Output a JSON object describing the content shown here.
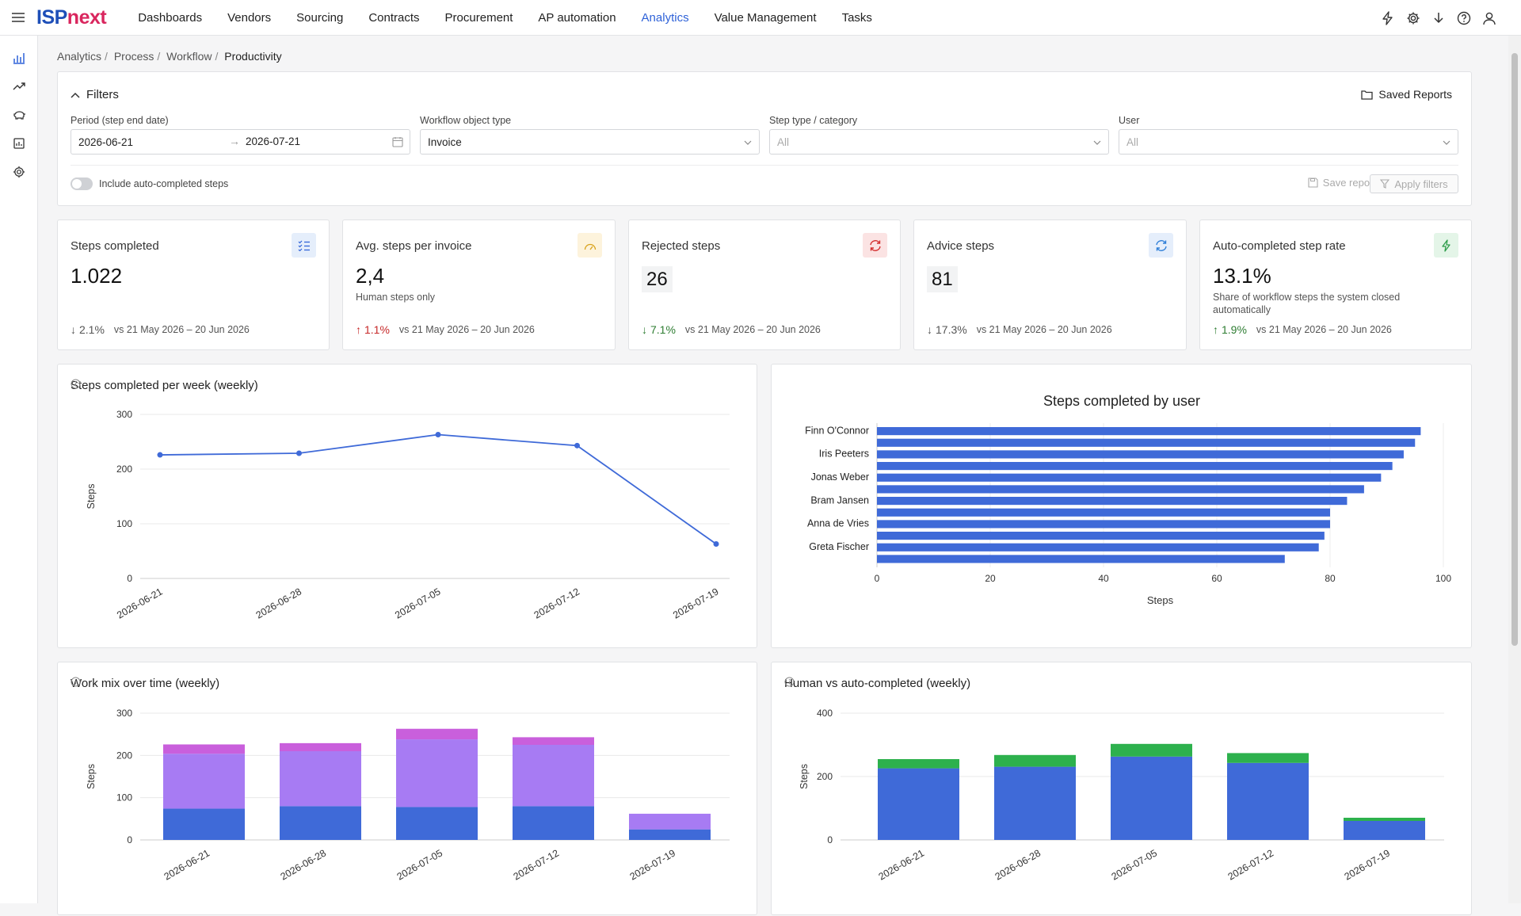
{
  "app": {
    "logo_part1": "ISP",
    "logo_part2": "next"
  },
  "nav": [
    "Dashboards",
    "Vendors",
    "Sourcing",
    "Contracts",
    "Procurement",
    "AP automation",
    "Analytics",
    "Value Management",
    "Tasks"
  ],
  "nav_active": "Analytics",
  "breadcrumb": {
    "items": [
      "Analytics",
      "Process",
      "Workflow"
    ],
    "current": "Productivity"
  },
  "filters": {
    "title": "Filters",
    "saved_reports": "Saved Reports",
    "period_label": "Period (step end date)",
    "period_start": "2026-06-21",
    "period_end": "2026-07-21",
    "object_type_label": "Workflow object type",
    "object_type_value": "Invoice",
    "step_type_label": "Step type / category",
    "step_type_placeholder": "All",
    "user_label": "User",
    "user_placeholder": "All",
    "toggle_label": "Include auto-completed steps",
    "save_report": "Save report",
    "apply_filters": "Apply filters"
  },
  "kpis": [
    {
      "title": "Steps completed",
      "value": "1.022",
      "sub": "",
      "delta": "2.1%",
      "direction": "down",
      "tone": "neutral",
      "compare": "vs 21 May 2026 – 20 Jun 2026",
      "icon": "checklist-icon",
      "icon_color": "#2f62d8",
      "icon_bg": "#e5eefb"
    },
    {
      "title": "Avg. steps per invoice",
      "value": "2,4",
      "sub": "Human steps only",
      "delta": "1.1%",
      "direction": "up",
      "tone": "bad",
      "compare": "vs 21 May 2026 – 20 Jun 2026",
      "icon": "gauge-icon",
      "icon_color": "#d9a21b",
      "icon_bg": "#fdf3dc"
    },
    {
      "title": "Rejected steps",
      "value": "26",
      "sub": "",
      "delta": "7.1%",
      "direction": "down",
      "tone": "good",
      "compare": "vs 21 May 2026 – 20 Jun 2026",
      "icon": "refresh-icon",
      "icon_color": "#d32f2f",
      "icon_bg": "#fbe3e3"
    },
    {
      "title": "Advice steps",
      "value": "81",
      "sub": "",
      "delta": "17.3%",
      "direction": "down",
      "tone": "neutral",
      "compare": "vs 21 May 2026 – 20 Jun 2026",
      "icon": "refresh-icon",
      "icon_color": "#2f7fd8",
      "icon_bg": "#e5eefb"
    },
    {
      "title": "Auto-completed step rate",
      "value": "13.1%",
      "sub": "Share of workflow steps the system closed automatically",
      "delta": "1.9%",
      "direction": "up",
      "tone": "good",
      "compare": "vs 21 May 2026 – 20 Jun 2026",
      "icon": "bolt-icon",
      "icon_color": "#2e9d4a",
      "icon_bg": "#e4f5e8"
    }
  ],
  "chart_titles": {
    "weekly": "Steps completed per week (weekly)",
    "by_user": "Steps completed by user",
    "work_mix": "Work mix over time (weekly)",
    "human_auto": "Human vs auto-completed (weekly)"
  },
  "chart_data": [
    {
      "id": "weekly",
      "type": "line",
      "title": "Steps completed per week (weekly)",
      "x": [
        "2026-06-21",
        "2026-06-28",
        "2026-07-05",
        "2026-07-12",
        "2026-07-19"
      ],
      "series": [
        {
          "values": [
            226,
            229,
            263,
            243,
            63
          ],
          "color": "#3f6ad8"
        }
      ],
      "ylabel": "Steps",
      "ylim": [
        0,
        300
      ],
      "yticks": [
        0,
        100,
        200,
        300
      ],
      "grid": true
    },
    {
      "id": "by_user",
      "type": "bar",
      "orientation": "horizontal",
      "title": "Steps completed by user",
      "categories": [
        "Finn O'Connor",
        "",
        "Iris Peeters",
        "",
        "Jonas Weber",
        "",
        "Bram Jansen",
        "",
        "Anna de Vries",
        "",
        "Greta Fischer",
        ""
      ],
      "values": [
        96,
        95,
        93,
        91,
        89,
        86,
        83,
        80,
        80,
        79,
        78,
        72
      ],
      "color": "#3f6ad8",
      "xlabel": "Steps",
      "xlim": [
        0,
        100
      ],
      "xticks": [
        0,
        20,
        40,
        60,
        80,
        100
      ]
    },
    {
      "id": "work_mix",
      "type": "bar",
      "stacked": true,
      "title": "Work mix over time (weekly)",
      "categories": [
        "2026-06-21",
        "2026-06-28",
        "2026-07-05",
        "2026-07-12",
        "2026-07-19"
      ],
      "series": [
        {
          "values": [
            74,
            80,
            78,
            80,
            25
          ],
          "color": "#3f6ad8"
        },
        {
          "values": [
            130,
            130,
            160,
            145,
            37
          ],
          "color": "#a77bf3"
        },
        {
          "values": [
            22,
            19,
            25,
            18,
            0
          ],
          "color": "#c95fdc"
        }
      ],
      "ylabel": "Steps",
      "ylim": [
        0,
        300
      ],
      "yticks": [
        0,
        100,
        200,
        300
      ]
    },
    {
      "id": "human_auto",
      "type": "bar",
      "stacked": true,
      "title": "Human vs auto-completed (weekly)",
      "categories": [
        "2026-06-21",
        "2026-06-28",
        "2026-07-05",
        "2026-07-12",
        "2026-07-19"
      ],
      "series": [
        {
          "values": [
            226,
            231,
            263,
            243,
            60
          ],
          "color": "#3f6ad8"
        },
        {
          "values": [
            29,
            37,
            40,
            31,
            10
          ],
          "color": "#2db14d"
        }
      ],
      "ylabel": "Steps",
      "ylim": [
        0,
        400
      ],
      "yticks": [
        0,
        200,
        400
      ]
    }
  ]
}
